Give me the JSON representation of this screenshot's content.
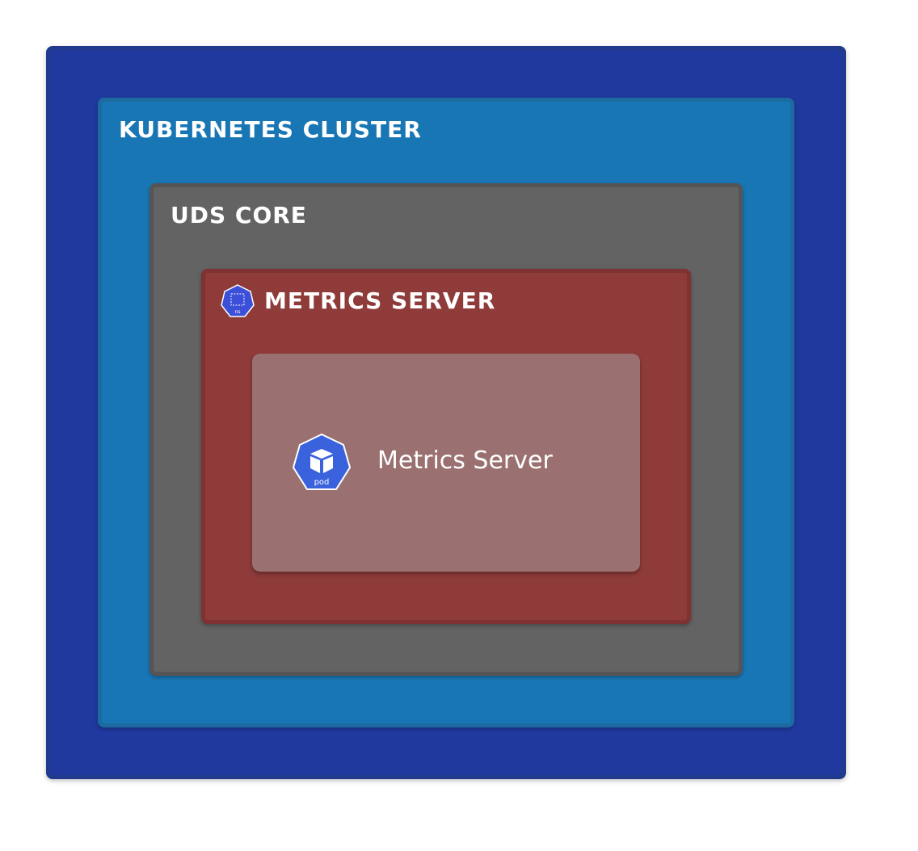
{
  "diagram": {
    "cluster_label": "KUBERNETES CLUSTER",
    "core_label": "UDS CORE",
    "namespace_label": "METRICS SERVER",
    "namespace_icon_text": "ns",
    "pod_label": "Metrics Server",
    "pod_icon_text": "pod"
  },
  "icons": {
    "namespace": "kubernetes-namespace-icon",
    "pod": "kubernetes-pod-icon"
  },
  "colors": {
    "outer": "#1f399e",
    "cluster": "#1976b5",
    "core": "#636363",
    "namespace": "#8e3b3a",
    "pod_card": "#9a7170",
    "k8s_icon": "#3b62dd"
  }
}
